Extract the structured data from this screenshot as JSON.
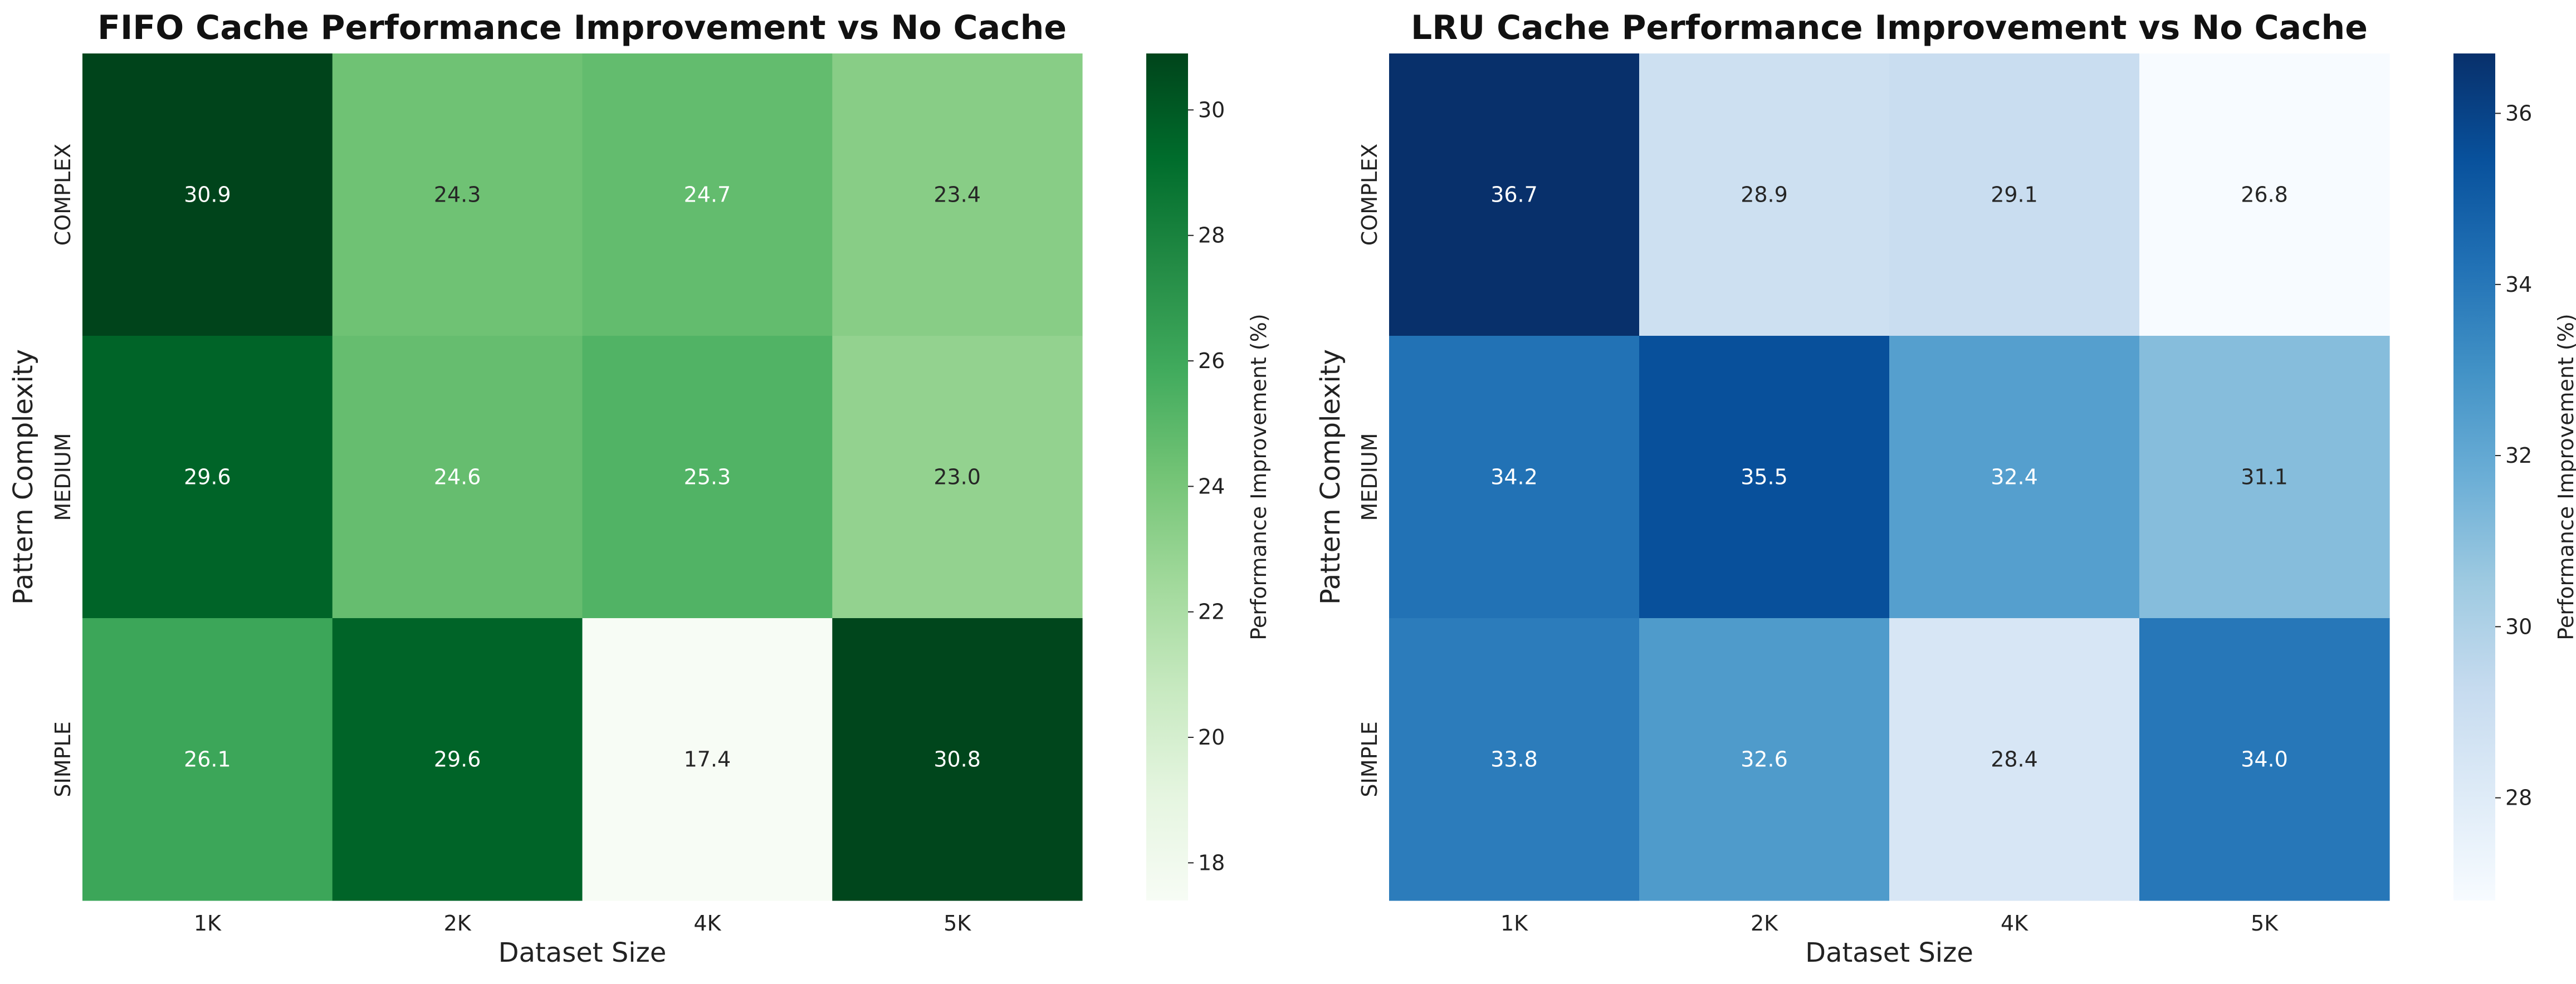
{
  "chart_data": [
    {
      "type": "heatmap",
      "title": "FIFO Cache Performance Improvement vs No Cache",
      "xlabel": "Dataset Size",
      "ylabel": "Pattern Complexity",
      "x_categories": [
        "1K",
        "2K",
        "4K",
        "5K"
      ],
      "y_categories": [
        "COMPLEX",
        "MEDIUM",
        "SIMPLE"
      ],
      "values": [
        [
          30.9,
          24.3,
          24.7,
          23.4
        ],
        [
          29.6,
          24.6,
          25.3,
          23.0
        ],
        [
          26.1,
          29.6,
          17.4,
          30.8
        ]
      ],
      "value_labels": [
        [
          "30.9",
          "24.3",
          "24.7",
          "23.4"
        ],
        [
          "29.6",
          "24.6",
          "25.3",
          "23.0"
        ],
        [
          "26.1",
          "29.6",
          "17.4",
          "30.8"
        ]
      ],
      "colormap": "Greens",
      "colormap_stops": [
        "#f7fcf5",
        "#e5f5e0",
        "#c7e9c0",
        "#a1d99b",
        "#74c476",
        "#41ab5d",
        "#238b45",
        "#006d2c",
        "#00441b"
      ],
      "colorbar": {
        "label": "Performance Improvement (%)",
        "range": [
          17.4,
          30.9
        ],
        "ticks": [
          18,
          20,
          22,
          24,
          26,
          28,
          30
        ]
      }
    },
    {
      "type": "heatmap",
      "title": "LRU Cache Performance Improvement vs No Cache",
      "xlabel": "Dataset Size",
      "ylabel": "Pattern Complexity",
      "x_categories": [
        "1K",
        "2K",
        "4K",
        "5K"
      ],
      "y_categories": [
        "COMPLEX",
        "MEDIUM",
        "SIMPLE"
      ],
      "values": [
        [
          36.7,
          28.9,
          29.1,
          26.8
        ],
        [
          34.2,
          35.5,
          32.4,
          31.1
        ],
        [
          33.8,
          32.6,
          28.4,
          34.0
        ]
      ],
      "value_labels": [
        [
          "36.7",
          "28.9",
          "29.1",
          "26.8"
        ],
        [
          "34.2",
          "35.5",
          "32.4",
          "31.1"
        ],
        [
          "33.8",
          "32.6",
          "28.4",
          "34.0"
        ]
      ],
      "colormap": "Blues",
      "colormap_stops": [
        "#f7fbff",
        "#deebf7",
        "#c6dbef",
        "#9ecae1",
        "#6baed6",
        "#4292c6",
        "#2171b5",
        "#08519c",
        "#08306b"
      ],
      "colorbar": {
        "label": "Performance Improvement (%)",
        "range": [
          26.8,
          36.7
        ],
        "ticks": [
          28,
          30,
          32,
          34,
          36
        ]
      }
    }
  ]
}
